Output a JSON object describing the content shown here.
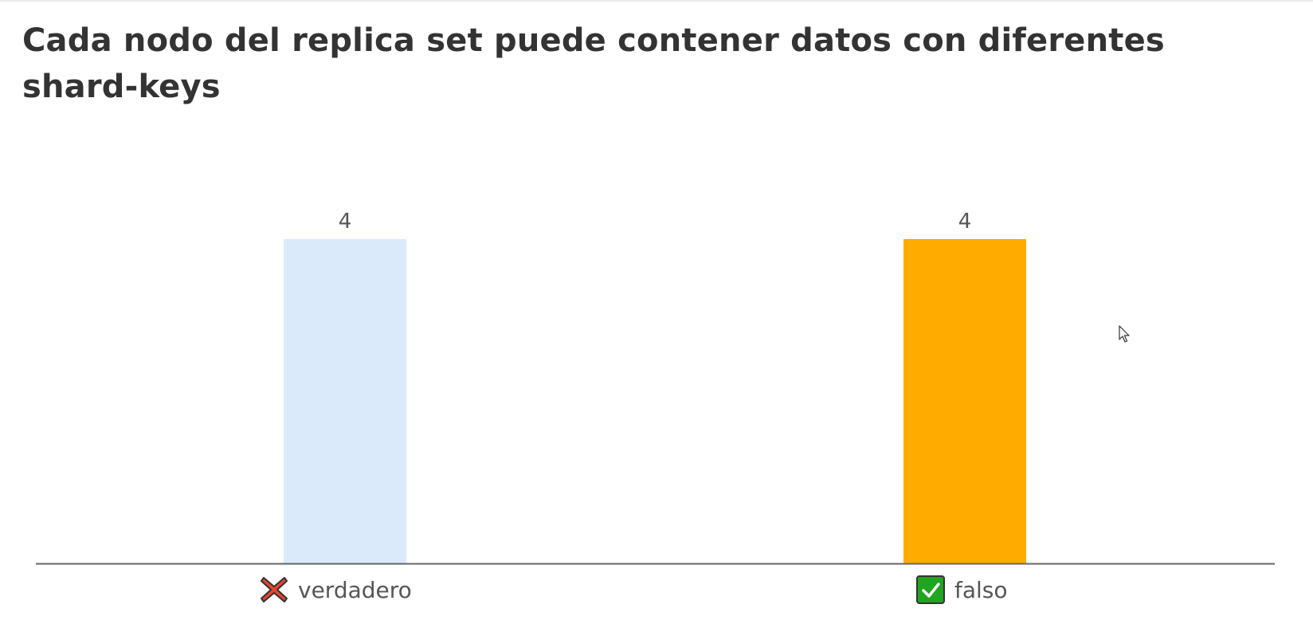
{
  "question": {
    "title": "Cada nodo del replica set puede contener datos con diferentes shard-keys"
  },
  "chart_data": {
    "type": "bar",
    "title": "Cada nodo del replica set puede contener datos con diferentes shard-keys",
    "categories": [
      "verdadero",
      "falso"
    ],
    "values": [
      4,
      4
    ],
    "category_icons": [
      "cross-mark-icon",
      "check-mark-icon"
    ],
    "bar_colors": [
      "#daeafa",
      "#ffab00"
    ],
    "ylim": [
      0,
      4
    ],
    "grid": false,
    "show_value_labels": true
  },
  "colors": {
    "title": "#333333",
    "axis": "#666666",
    "cross_icon": "#e2472f",
    "check_icon": "#1fa51f"
  }
}
